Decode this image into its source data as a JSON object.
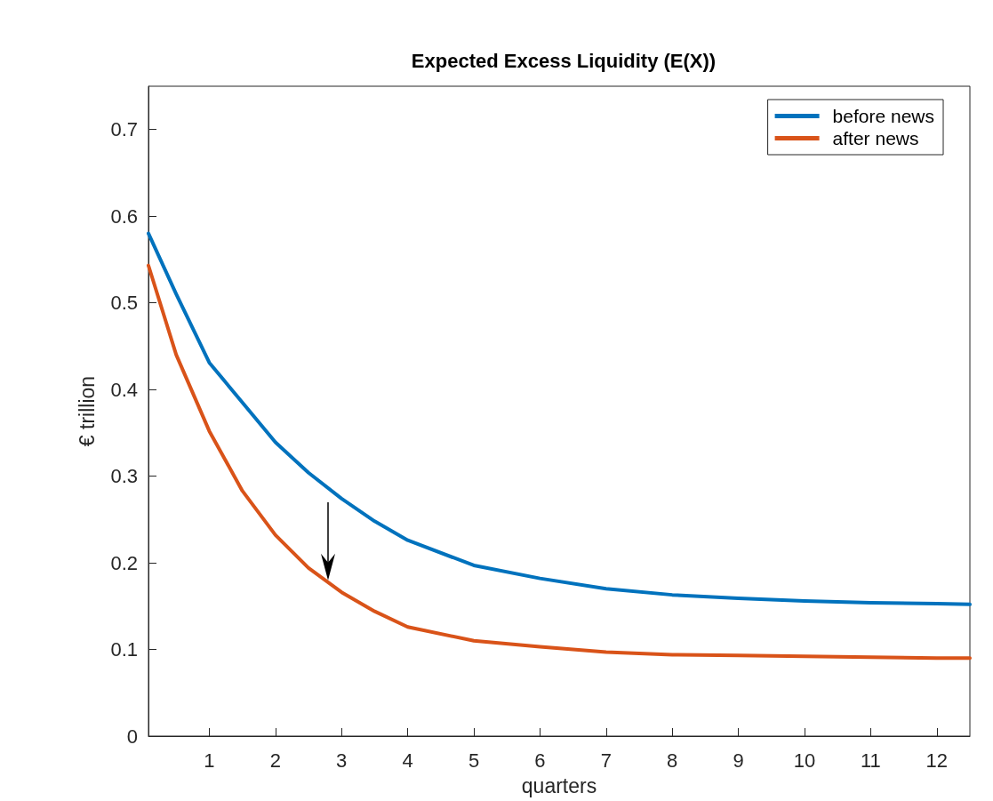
{
  "chart_data": {
    "type": "line",
    "title": "Expected Excess Liquidity (E(X))",
    "xlabel": "quarters",
    "ylabel": "€ trillion",
    "x": [
      0.08,
      0.5,
      1,
      1.5,
      2,
      2.5,
      3,
      3.5,
      4,
      5,
      6,
      7,
      8,
      9,
      10,
      11,
      12,
      12.5
    ],
    "series": [
      {
        "name": "before news",
        "color": "#0072bd",
        "values": [
          0.58,
          0.51,
          0.431,
          0.385,
          0.339,
          0.304,
          0.274,
          0.248,
          0.226,
          0.197,
          0.182,
          0.17,
          0.163,
          0.159,
          0.156,
          0.154,
          0.153,
          0.152
        ]
      },
      {
        "name": "after news",
        "color": "#d95319",
        "values": [
          0.543,
          0.44,
          0.352,
          0.283,
          0.232,
          0.194,
          0.166,
          0.144,
          0.126,
          0.11,
          0.103,
          0.097,
          0.094,
          0.093,
          0.092,
          0.091,
          0.09,
          0.09
        ]
      }
    ],
    "xlim": [
      0.08,
      12.5
    ],
    "xticks": [
      1,
      2,
      3,
      4,
      5,
      6,
      7,
      8,
      9,
      10,
      11,
      12
    ],
    "ylim": [
      0,
      0.75
    ],
    "yticks": [
      0,
      0.1,
      0.2,
      0.3,
      0.4,
      0.5,
      0.6,
      0.7
    ],
    "grid": false,
    "legend": "top right",
    "marker": "none",
    "line_style": "solid"
  }
}
